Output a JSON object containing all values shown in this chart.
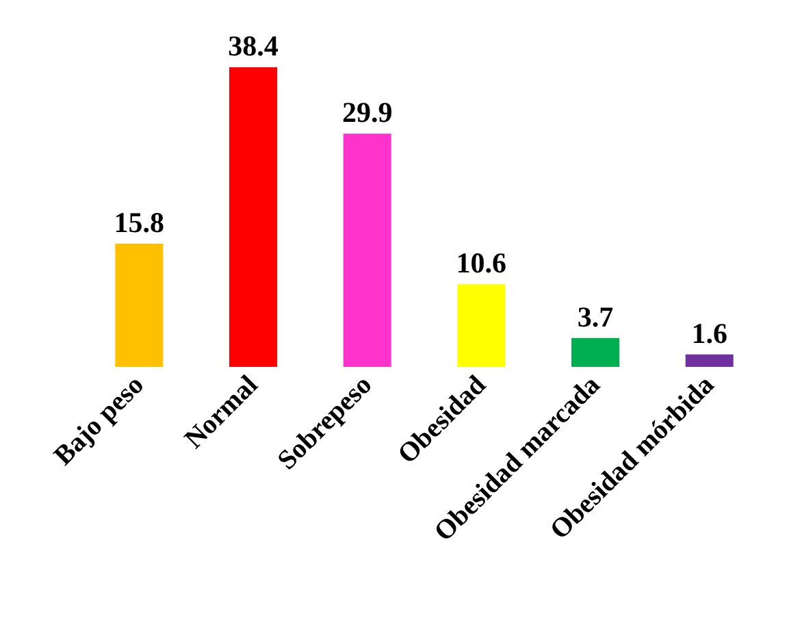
{
  "chart_data": {
    "type": "bar",
    "categories": [
      "Bajo peso",
      "Normal",
      "Sobrepeso",
      "Obesidad",
      "Obesidad marcada",
      "Obesidad mórbida"
    ],
    "values": [
      15.8,
      38.4,
      29.9,
      10.6,
      3.7,
      1.6
    ],
    "colors": [
      "#ffc000",
      "#ff0000",
      "#ff33cc",
      "#ffff00",
      "#00b050",
      "#7030a0"
    ],
    "data_labels": true
  }
}
